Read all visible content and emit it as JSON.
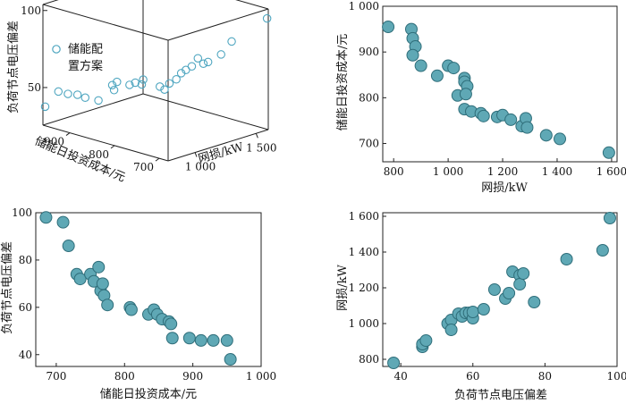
{
  "colors": {
    "marker_fill": "#5FA8B5",
    "marker_stroke": "#2F6E7A",
    "hollow_stroke": "#4FA6C0",
    "axis": "#222222"
  },
  "chart_data": [
    {
      "id": "a",
      "type": "scatter3d",
      "legend": "储能配置方案",
      "legend_lines": [
        "储能配",
        "置方案"
      ],
      "zlabel": "负荷节点电压偏差",
      "ylabel": "储能日投资成本/元",
      "xlabel": "网损/kW",
      "xticks": [
        "1 000",
        "1 500"
      ],
      "yticks": [
        "900",
        "800",
        "700"
      ],
      "zticks": [
        "100",
        "50"
      ],
      "xlim": [
        780,
        1600
      ],
      "ylim": [
        680,
        960
      ],
      "zlim": [
        35,
        100
      ],
      "points": [
        {
          "x": 780,
          "y": 955,
          "z": 38
        },
        {
          "x": 870,
          "y": 950,
          "z": 46
        },
        {
          "x": 875,
          "y": 930,
          "z": 46
        },
        {
          "x": 880,
          "y": 910,
          "z": 47
        },
        {
          "x": 870,
          "y": 890,
          "z": 47
        },
        {
          "x": 905,
          "y": 870,
          "z": 46
        },
        {
          "x": 960,
          "y": 850,
          "z": 53
        },
        {
          "x": 1000,
          "y": 865,
          "z": 54
        },
        {
          "x": 1020,
          "y": 860,
          "z": 56
        },
        {
          "x": 1050,
          "y": 840,
          "z": 55
        },
        {
          "x": 1060,
          "y": 830,
          "z": 57
        },
        {
          "x": 1070,
          "y": 815,
          "z": 60
        },
        {
          "x": 1040,
          "y": 810,
          "z": 58
        },
        {
          "x": 1060,
          "y": 775,
          "z": 59
        },
        {
          "x": 1080,
          "y": 770,
          "z": 57
        },
        {
          "x": 1120,
          "y": 770,
          "z": 60
        },
        {
          "x": 1140,
          "y": 760,
          "z": 63
        },
        {
          "x": 1180,
          "y": 760,
          "z": 66
        },
        {
          "x": 1200,
          "y": 755,
          "z": 68
        },
        {
          "x": 1230,
          "y": 750,
          "z": 70
        },
        {
          "x": 1270,
          "y": 735,
          "z": 72
        },
        {
          "x": 1280,
          "y": 750,
          "z": 74
        },
        {
          "x": 1290,
          "y": 730,
          "z": 73
        },
        {
          "x": 1360,
          "y": 720,
          "z": 77
        },
        {
          "x": 1410,
          "y": 710,
          "z": 85
        },
        {
          "x": 1590,
          "y": 680,
          "z": 98
        }
      ]
    },
    {
      "id": "b",
      "type": "scatter",
      "xlabel": "网损/kW",
      "ylabel": "储能日投资成本/元",
      "xlim": [
        760,
        1620
      ],
      "ylim": [
        660,
        1000
      ],
      "xticks": [
        800,
        1000,
        1200,
        1400,
        1600
      ],
      "xtick_labels": [
        "800",
        "1 000",
        "1 200",
        "1 400",
        "1 600"
      ],
      "yticks": [
        700,
        800,
        900,
        1000
      ],
      "ytick_labels": [
        "700",
        "800",
        "900",
        "1 000"
      ],
      "points": [
        {
          "x": 780,
          "y": 955
        },
        {
          "x": 865,
          "y": 950
        },
        {
          "x": 870,
          "y": 930
        },
        {
          "x": 880,
          "y": 912
        },
        {
          "x": 870,
          "y": 893
        },
        {
          "x": 900,
          "y": 870
        },
        {
          "x": 960,
          "y": 848
        },
        {
          "x": 1000,
          "y": 870
        },
        {
          "x": 1020,
          "y": 865
        },
        {
          "x": 1060,
          "y": 843
        },
        {
          "x": 1060,
          "y": 835
        },
        {
          "x": 1070,
          "y": 825
        },
        {
          "x": 1035,
          "y": 805
        },
        {
          "x": 1065,
          "y": 808
        },
        {
          "x": 1060,
          "y": 775
        },
        {
          "x": 1085,
          "y": 770
        },
        {
          "x": 1120,
          "y": 766
        },
        {
          "x": 1130,
          "y": 760
        },
        {
          "x": 1180,
          "y": 758
        },
        {
          "x": 1200,
          "y": 762
        },
        {
          "x": 1230,
          "y": 752
        },
        {
          "x": 1270,
          "y": 738
        },
        {
          "x": 1285,
          "y": 755
        },
        {
          "x": 1290,
          "y": 735
        },
        {
          "x": 1360,
          "y": 718
        },
        {
          "x": 1410,
          "y": 710
        },
        {
          "x": 1590,
          "y": 680
        }
      ]
    },
    {
      "id": "c",
      "type": "scatter",
      "xlabel": "储能日投资成本/元",
      "ylabel": "负荷节点电压偏差",
      "xlim": [
        670,
        1000
      ],
      "ylim": [
        35,
        100
      ],
      "xticks": [
        700,
        800,
        900,
        1000
      ],
      "xtick_labels": [
        "700",
        "800",
        "900",
        "1 000"
      ],
      "yticks": [
        40,
        60,
        80,
        100
      ],
      "ytick_labels": [
        "40",
        "60",
        "80",
        "100"
      ],
      "points": [
        {
          "x": 685,
          "y": 98
        },
        {
          "x": 710,
          "y": 96
        },
        {
          "x": 718,
          "y": 86
        },
        {
          "x": 730,
          "y": 74
        },
        {
          "x": 735,
          "y": 72
        },
        {
          "x": 750,
          "y": 74
        },
        {
          "x": 755,
          "y": 71
        },
        {
          "x": 762,
          "y": 77
        },
        {
          "x": 765,
          "y": 67
        },
        {
          "x": 768,
          "y": 70
        },
        {
          "x": 770,
          "y": 65
        },
        {
          "x": 775,
          "y": 61
        },
        {
          "x": 808,
          "y": 60
        },
        {
          "x": 810,
          "y": 59
        },
        {
          "x": 835,
          "y": 57
        },
        {
          "x": 843,
          "y": 59
        },
        {
          "x": 848,
          "y": 57
        },
        {
          "x": 855,
          "y": 55
        },
        {
          "x": 865,
          "y": 54
        },
        {
          "x": 868,
          "y": 53
        },
        {
          "x": 870,
          "y": 47
        },
        {
          "x": 895,
          "y": 47
        },
        {
          "x": 912,
          "y": 46
        },
        {
          "x": 930,
          "y": 46
        },
        {
          "x": 950,
          "y": 46
        },
        {
          "x": 955,
          "y": 38
        }
      ]
    },
    {
      "id": "d",
      "type": "scatter",
      "xlabel": "负荷节点电压偏差",
      "ylabel": "网损/kW",
      "xlim": [
        35,
        100
      ],
      "ylim": [
        760,
        1620
      ],
      "xticks": [
        40,
        60,
        80,
        100
      ],
      "xtick_labels": [
        "40",
        "60",
        "80",
        "100"
      ],
      "yticks": [
        800,
        1000,
        1200,
        1400,
        1600
      ],
      "ytick_labels": [
        "800",
        "1 000",
        "1 200",
        "1 400",
        "1 600"
      ],
      "points": [
        {
          "x": 38,
          "y": 780
        },
        {
          "x": 46,
          "y": 870
        },
        {
          "x": 46,
          "y": 885
        },
        {
          "x": 47,
          "y": 905
        },
        {
          "x": 53,
          "y": 1000
        },
        {
          "x": 54,
          "y": 1020
        },
        {
          "x": 54,
          "y": 965
        },
        {
          "x": 56,
          "y": 1055
        },
        {
          "x": 57,
          "y": 1040
        },
        {
          "x": 58,
          "y": 1060
        },
        {
          "x": 59,
          "y": 1060
        },
        {
          "x": 60,
          "y": 1030
        },
        {
          "x": 60,
          "y": 1065
        },
        {
          "x": 63,
          "y": 1080
        },
        {
          "x": 66,
          "y": 1190
        },
        {
          "x": 69,
          "y": 1140
        },
        {
          "x": 70,
          "y": 1170
        },
        {
          "x": 71,
          "y": 1290
        },
        {
          "x": 73,
          "y": 1270
        },
        {
          "x": 73,
          "y": 1220
        },
        {
          "x": 74,
          "y": 1280
        },
        {
          "x": 77,
          "y": 1120
        },
        {
          "x": 86,
          "y": 1360
        },
        {
          "x": 96,
          "y": 1410
        },
        {
          "x": 98,
          "y": 1590
        }
      ]
    }
  ]
}
